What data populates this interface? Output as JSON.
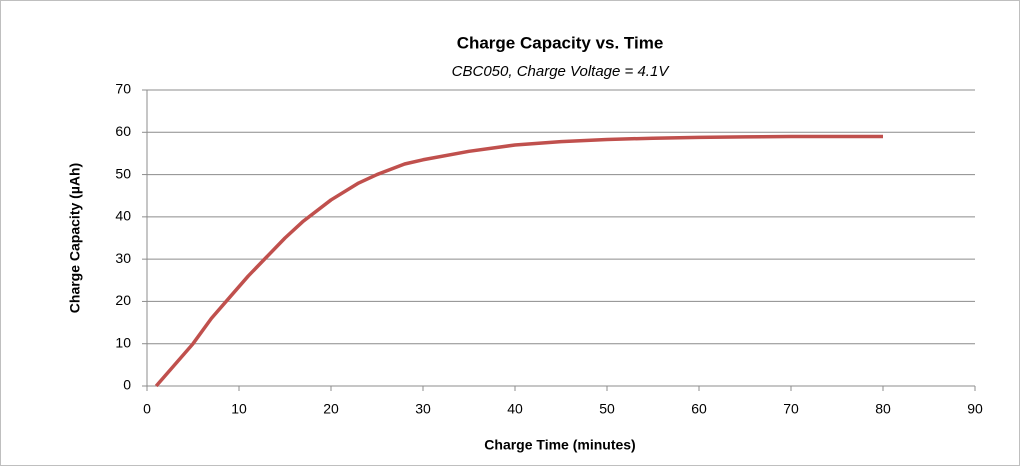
{
  "chart_data": {
    "type": "line",
    "title": "Charge Capacity vs. Time",
    "subtitle": "CBC050, Charge Voltage = 4.1V",
    "x_label": "Charge Time (minutes)",
    "y_label": "Charge Capacity (µAh)",
    "x": [
      1,
      3,
      5,
      7,
      9,
      11,
      13,
      15,
      17,
      20,
      23,
      25,
      28,
      30,
      35,
      40,
      45,
      50,
      55,
      60,
      65,
      70,
      75,
      80
    ],
    "series": [
      {
        "name": "Charge Capacity",
        "color": "#c0504d",
        "values": [
          0,
          5,
          10,
          16,
          21,
          26,
          30.5,
          35,
          39,
          44,
          48,
          50,
          52.5,
          53.5,
          55.5,
          57,
          57.8,
          58.3,
          58.6,
          58.8,
          58.9,
          59,
          59,
          59
        ]
      }
    ],
    "xlim": [
      0,
      90
    ],
    "xticks": [
      0,
      10,
      20,
      30,
      40,
      50,
      60,
      70,
      80,
      90
    ],
    "ylim": [
      0,
      70
    ],
    "yticks": [
      0,
      10,
      20,
      30,
      40,
      50,
      60,
      70
    ],
    "grid": true
  }
}
